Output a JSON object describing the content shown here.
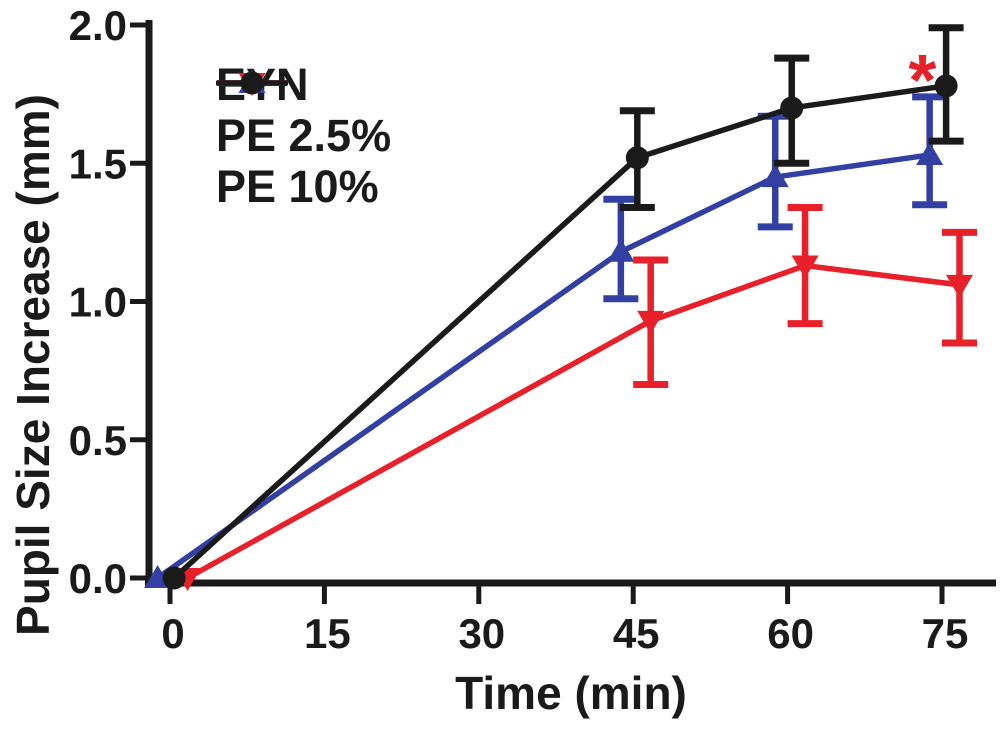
{
  "figure": {
    "background_color": "#ffffff",
    "axis_color": "#1a1a1a"
  },
  "chart_data": {
    "type": "line",
    "title": "",
    "xlabel": "Time (min)",
    "ylabel": "Pupil Size Increase (mm)",
    "x_ticks": [
      0,
      15,
      30,
      45,
      60,
      75
    ],
    "x_tick_labels": [
      "0",
      "15",
      "30",
      "45",
      "60",
      "75"
    ],
    "y_ticks": [
      0.0,
      0.5,
      1.0,
      1.5,
      2.0
    ],
    "y_tick_labels": [
      "0.0",
      "0.5",
      "1.0",
      "1.5",
      "2.0"
    ],
    "xlim": [
      -2.5,
      80.5
    ],
    "ylim": [
      0.0,
      2.0
    ],
    "grid": false,
    "legend_position": "inside-top-left",
    "x": [
      0,
      45,
      60,
      75
    ],
    "series": [
      {
        "name": "EYN",
        "color": "#3340a3",
        "marker": "triangle-up",
        "x_offset_min": -1.2,
        "values": [
          0.0,
          1.18,
          1.45,
          1.53
        ],
        "err_low": [
          null,
          1.01,
          1.27,
          1.35
        ],
        "err_high": [
          null,
          1.37,
          1.67,
          1.74
        ]
      },
      {
        "name": "PE 2.5%",
        "color": "#e8202a",
        "marker": "triangle-down",
        "x_offset_min": 1.7,
        "values": [
          0.0,
          0.93,
          1.13,
          1.06
        ],
        "err_low": [
          null,
          0.7,
          0.92,
          0.85
        ],
        "err_high": [
          null,
          1.15,
          1.34,
          1.25
        ]
      },
      {
        "name": "PE 10%",
        "color": "#1a1a1a",
        "marker": "circle",
        "x_offset_min": 0.4,
        "values": [
          0.0,
          1.52,
          1.7,
          1.78
        ],
        "err_low": [
          null,
          1.34,
          1.5,
          1.58
        ],
        "err_high": [
          null,
          1.69,
          1.88,
          1.99
        ]
      }
    ],
    "annotations": [
      {
        "text": "*",
        "color": "#e8202a",
        "x_min": 73.1,
        "y_mm": 1.84
      }
    ]
  }
}
